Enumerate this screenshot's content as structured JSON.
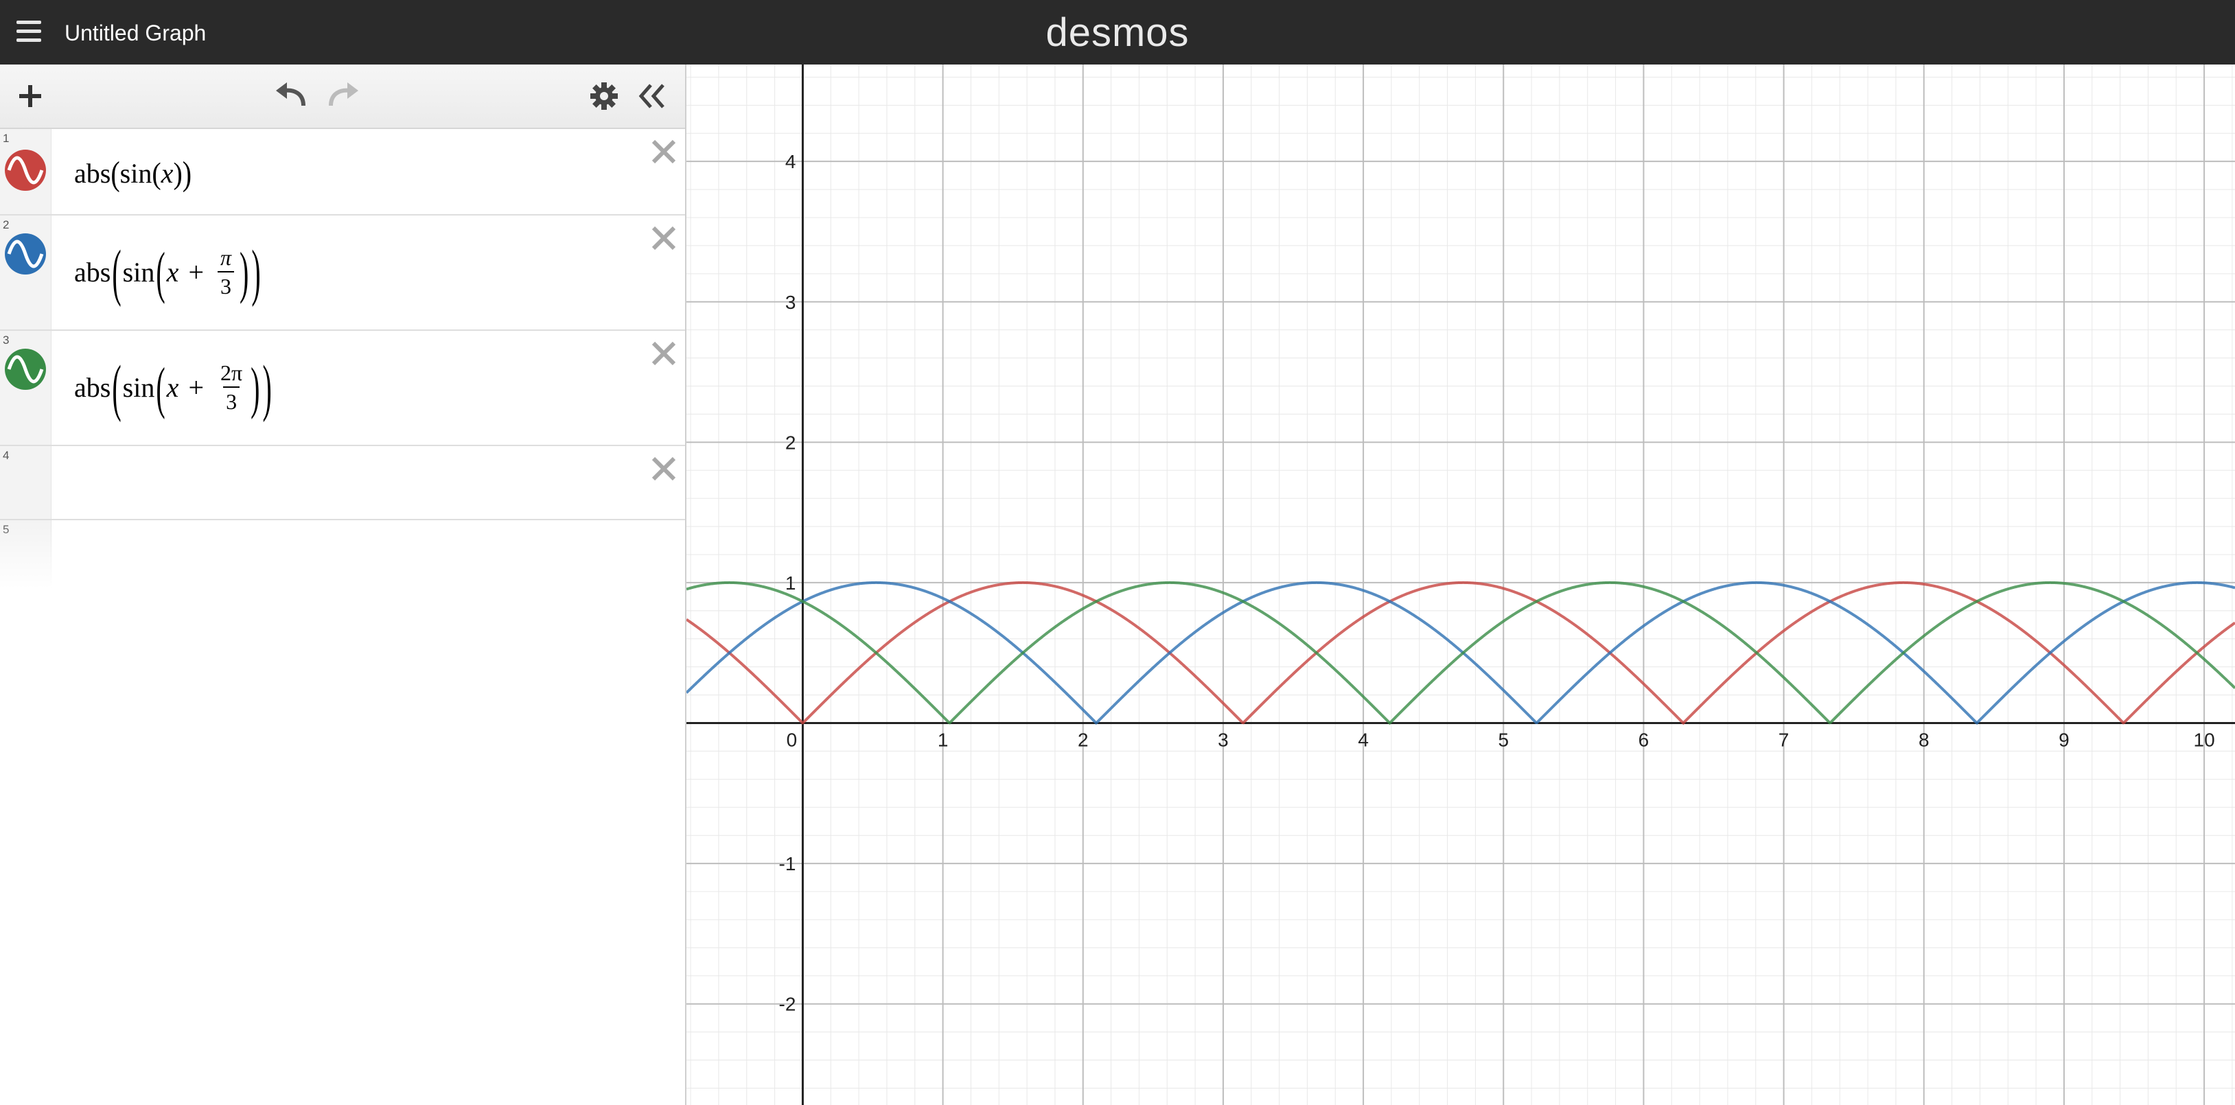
{
  "header": {
    "title": "Untitled Graph",
    "brand": "desmos"
  },
  "toolbar": {
    "icons": [
      "plus-icon",
      "undo-icon",
      "redo-icon",
      "gear-icon",
      "collapse-icon"
    ]
  },
  "expressions": [
    {
      "index": "1",
      "color": "#c74440",
      "fn": "abs",
      "inner": "sin",
      "var": "x",
      "offset": null
    },
    {
      "index": "2",
      "color": "#2d70b3",
      "fn": "abs",
      "inner": "sin",
      "var": "x",
      "op": "+",
      "frac_num": "π",
      "frac_den": "3"
    },
    {
      "index": "3",
      "color": "#388c46",
      "fn": "abs",
      "inner": "sin",
      "var": "x",
      "op": "+",
      "frac_num": "2π",
      "frac_den": "3"
    },
    {
      "index": "4",
      "empty": true
    },
    {
      "index": "5",
      "empty": true
    }
  ],
  "graph": {
    "x_ticks": [
      "0",
      "1",
      "2",
      "3",
      "4",
      "5",
      "6",
      "7",
      "8",
      "9",
      "10"
    ],
    "y_ticks": [
      "4",
      "3",
      "2",
      "1",
      "-1",
      "-2"
    ],
    "xlim": [
      -0.83,
      10.22
    ],
    "ylim": [
      -2.72,
      4.69
    ],
    "curve_colors": [
      "#c74440",
      "#2d70b3",
      "#388c46"
    ],
    "curve_phases": [
      0,
      1.0471975512,
      2.0943951024
    ]
  }
}
